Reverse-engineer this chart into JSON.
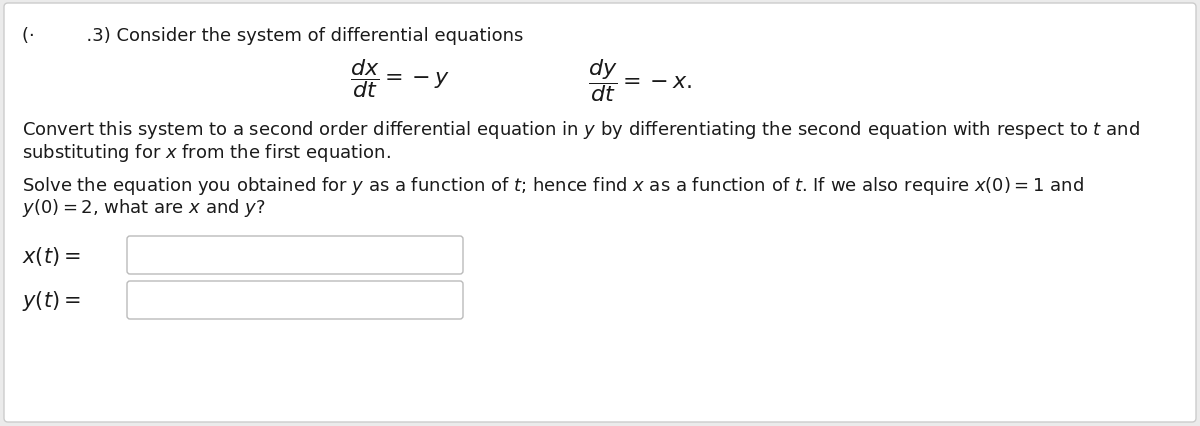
{
  "bg_color": "#ebebeb",
  "panel_color": "#ffffff",
  "text_color": "#1a1a1a",
  "box_bg": "#ffffff",
  "box_border": "#bbbbbb",
  "header_prefix": "(·         .3) Consider the system of differential equations",
  "line2": "Convert this system to a second order differential equation in $y$ by differentiating the second equation with respect to $t$ and",
  "line3": "substituting for $x$ from the first equation.",
  "line4": "Solve the equation you obtained for $y$ as a function of $t$; hence find $x$ as a function of $t$. If we also require $x(0) = 1$ and",
  "line5": "$y(0) = 2$, what are $x$ and $y$?",
  "label_x": "$x(t) =$",
  "label_y": "$y(t) =$",
  "eq_fontsize": 16,
  "body_fontsize": 13,
  "label_fontsize": 15,
  "header_fontsize": 13
}
